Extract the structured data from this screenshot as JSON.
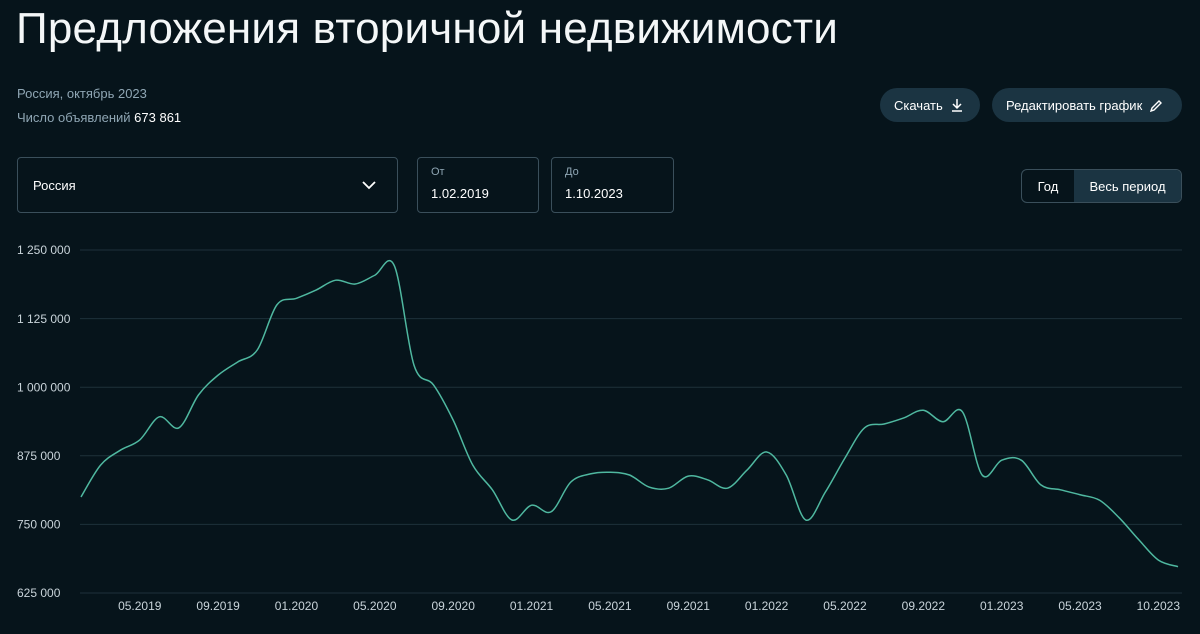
{
  "header": {
    "title": "Предложения вторичной недвижимости",
    "subtitle": "Россия, октябрь 2023",
    "count_label": "Число объявлений",
    "count_value": "673 861"
  },
  "buttons": {
    "download": "Скачать",
    "edit": "Редактировать график"
  },
  "filters": {
    "region": "Россия",
    "from_label": "От",
    "from_value": "1.02.2019",
    "to_label": "До",
    "to_value": "1.10.2023",
    "period_year": "Год",
    "period_all": "Весь период"
  },
  "chart_data": {
    "type": "line",
    "categories": [
      null,
      null,
      null,
      "05.2019",
      null,
      null,
      null,
      "09.2019",
      null,
      null,
      null,
      "01.2020",
      null,
      null,
      null,
      "05.2020",
      null,
      null,
      null,
      "09.2020",
      null,
      null,
      null,
      "01.2021",
      null,
      null,
      null,
      "05.2021",
      null,
      null,
      null,
      "09.2021",
      null,
      null,
      null,
      "01.2022",
      null,
      null,
      null,
      "05.2022",
      null,
      null,
      null,
      "09.2022",
      null,
      null,
      null,
      "01.2023",
      null,
      null,
      null,
      "05.2023",
      null,
      null,
      null,
      null,
      "10.2023"
    ],
    "series": [
      {
        "color": "#4fb8a0",
        "values": [
          800000,
          858000,
          885000,
          904000,
          946000,
          926000,
          986000,
          1022000,
          1046000,
          1068000,
          1150000,
          1162000,
          1177000,
          1195000,
          1188000,
          1204000,
          1221000,
          1040000,
          1004000,
          940000,
          858000,
          813000,
          758000,
          785000,
          773000,
          827000,
          842000,
          845000,
          840000,
          818000,
          816000,
          838000,
          831000,
          816000,
          849000,
          882000,
          840000,
          758000,
          809000,
          871000,
          926000,
          933000,
          944000,
          958000,
          937000,
          955000,
          840000,
          867000,
          867000,
          822000,
          813000,
          804000,
          794000,
          762000,
          722000,
          685000,
          673000
        ]
      }
    ],
    "ylim": [
      625000,
      1250000
    ],
    "yticks": [
      {
        "value": 625000,
        "label": "625 000"
      },
      {
        "value": 750000,
        "label": "750 000"
      },
      {
        "value": 875000,
        "label": "875 000"
      },
      {
        "value": 1000000,
        "label": "1 000 000"
      },
      {
        "value": 1125000,
        "label": "1 125 000"
      },
      {
        "value": 1250000,
        "label": "1 250 000"
      }
    ],
    "grid": true
  }
}
